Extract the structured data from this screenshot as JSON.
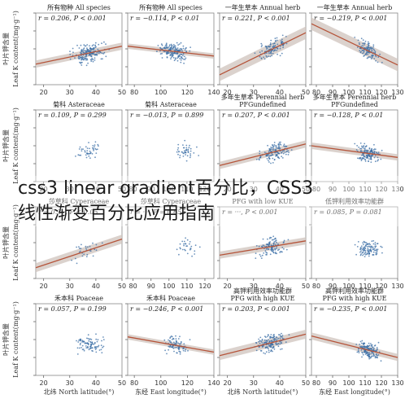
{
  "figure": {
    "y_axis_label": "Leaf K content(mg·g⁻¹)",
    "y_axis_label_cn": "叶片钾含量",
    "x_axis_labels": [
      "北纬 North latitude(°)",
      "东经 East longitude(°)",
      "北纬 North latitude(°)",
      "东经 East longitude(°)"
    ]
  },
  "overlay": {
    "line1": "css3 linear gradient百分比，CSS3",
    "line2": "线性渐变百分比应用指南"
  },
  "colors": {
    "points": "#3a6ea5",
    "line": "#b5543a",
    "band": "#cfc3bc"
  },
  "chart_data": [
    {
      "type": "scatter",
      "title": "所有物种 All species",
      "stat": "r = 0.206, P < 0.001",
      "xticks": [
        20,
        30,
        40,
        50
      ],
      "xlim": [
        17,
        50
      ],
      "fit": [
        [
          17,
          11.5
        ],
        [
          50,
          21.5
        ]
      ],
      "band": 2.0,
      "center": 37,
      "spread": 9,
      "npts": 170
    },
    {
      "type": "scatter",
      "title": "所有物种 All species",
      "stat": "r = −0.114, P < 0.01",
      "xticks": [
        80,
        100,
        120,
        140
      ],
      "xlim": [
        75,
        140
      ],
      "fit": [
        [
          75,
          21.5
        ],
        [
          140,
          16.0
        ]
      ],
      "band": 1.5,
      "center": 110,
      "spread": 15,
      "npts": 170
    },
    {
      "type": "scatter",
      "title": "一年生草本 Annual herb",
      "stat": "r = 0.221, P < 0.001",
      "xticks": [
        20,
        30,
        40,
        50
      ],
      "xlim": [
        17,
        50
      ],
      "fit": [
        [
          17,
          5.5
        ],
        [
          50,
          29.0
        ]
      ],
      "band": 3.5,
      "center": 37,
      "spread": 8,
      "npts": 110
    },
    {
      "type": "scatter",
      "title": "一年生草本 Annual herb",
      "stat": "r = −0.219, P < 0.001",
      "xticks": [
        80,
        90,
        100,
        110,
        120,
        130
      ],
      "xlim": [
        77,
        130
      ],
      "fit": [
        [
          77,
          34.0
        ],
        [
          130,
          11.0
        ]
      ],
      "band": 3.5,
      "center": 112,
      "spread": 10,
      "npts": 110
    },
    {
      "type": "scatter",
      "title": "菊科 Asteraceae",
      "stat": "r = 0.109, P = 0.299",
      "xticks": [
        20,
        30,
        40,
        50
      ],
      "xlim": [
        17,
        50
      ],
      "fit": [],
      "band": 0,
      "center": 37,
      "spread": 6,
      "npts": 45
    },
    {
      "type": "scatter",
      "title": "菊科 Asteraceae",
      "stat": "r = −0.013, P = 0.899",
      "xticks": [
        80,
        90,
        100,
        110,
        120
      ],
      "xlim": [
        77,
        125
      ],
      "fit": [],
      "band": 0,
      "center": 110,
      "spread": 8,
      "npts": 45
    },
    {
      "type": "scatter",
      "title": "多年生草本 Perennial herb",
      "stat": "r = 0.207, P < 0.001",
      "xticks": [
        20,
        30,
        40,
        50
      ],
      "xlim": [
        17,
        50
      ],
      "fit": [
        [
          17,
          9.0
        ],
        [
          50,
          21.0
        ]
      ],
      "band": 2.0,
      "center": 38,
      "spread": 8,
      "npts": 140
    },
    {
      "type": "scatter",
      "title": "多年生草本 Perennial herb",
      "stat": "r = −0.128, P < 0.01",
      "xticks": [
        80,
        90,
        100,
        110,
        120,
        130
      ],
      "xlim": [
        77,
        130
      ],
      "fit": [
        [
          77,
          20.0
        ],
        [
          130,
          13.5
        ]
      ],
      "band": 1.8,
      "center": 112,
      "spread": 10,
      "npts": 140
    },
    {
      "type": "scatter",
      "title": "莎草科 Cyperaceae",
      "stat": "r = 0.3··, P < 0.05",
      "xticks": [
        20,
        30,
        40,
        50
      ],
      "xlim": [
        17,
        50
      ],
      "fit": [
        [
          17,
          6.0
        ],
        [
          50,
          22.0
        ]
      ],
      "band": 2.5,
      "center": 36,
      "spread": 8,
      "npts": 30
    },
    {
      "type": "scatter",
      "title": "莎草科 Cyperaceae",
      "stat": "r = ···, P = 0.655",
      "xticks": [
        80,
        90,
        100,
        110,
        120
      ],
      "xlim": [
        77,
        125
      ],
      "fit": [],
      "band": 0,
      "center": 110,
      "spread": 9,
      "npts": 30
    },
    {
      "type": "scatter",
      "title": "PFG with low KUE",
      "stat": "r = ···, P < 0.001",
      "xticks": [
        20,
        30,
        40,
        50
      ],
      "xlim": [
        17,
        50
      ],
      "fit": [
        [
          17,
          13.0
        ],
        [
          50,
          21.0
        ]
      ],
      "band": 2.0,
      "center": 37,
      "spread": 8,
      "npts": 110
    },
    {
      "type": "scatter",
      "title": "低钾利用效率功能群",
      "stat": "r = 0.085, P = 0.081",
      "xticks": [
        80,
        90,
        100,
        110,
        120,
        130
      ],
      "xlim": [
        77,
        130
      ],
      "fit": [],
      "band": 0,
      "center": 112,
      "spread": 10,
      "npts": 110
    },
    {
      "type": "scatter",
      "title": "禾本科 Poaceae",
      "stat": "r = 0.057, P = 0.199",
      "xticks": [
        20,
        30,
        40,
        50
      ],
      "xlim": [
        17,
        50
      ],
      "fit": [],
      "band": 0,
      "center": 37,
      "spread": 8,
      "npts": 90
    },
    {
      "type": "scatter",
      "title": "禾本科 Poaceae",
      "stat": "r = −0.246, P < 0.001",
      "xticks": [
        80,
        100,
        120,
        140
      ],
      "xlim": [
        75,
        140
      ],
      "fit": [
        [
          75,
          21.5
        ],
        [
          140,
          13.0
        ]
      ],
      "band": 1.5,
      "center": 112,
      "spread": 12,
      "npts": 90
    },
    {
      "type": "scatter",
      "title": "高钾利用效率功能群 PFG with high KUE",
      "stat": "r = 0.203, P < 0.001",
      "xticks": [
        20,
        30,
        40,
        50
      ],
      "xlim": [
        17,
        50
      ],
      "fit": [
        [
          17,
          11.0
        ],
        [
          50,
          23.0
        ]
      ],
      "band": 2.5,
      "center": 37,
      "spread": 8,
      "npts": 150
    },
    {
      "type": "scatter",
      "title": "高钾利用效率功能群 PFG with high KUE",
      "stat": "r = −0.235, P < 0.001",
      "xticks": [
        80,
        90,
        100,
        110,
        120,
        130
      ],
      "xlim": [
        77,
        130
      ],
      "fit": [
        [
          77,
          22.0
        ],
        [
          130,
          10.0
        ]
      ],
      "band": 2.0,
      "center": 112,
      "spread": 10,
      "npts": 150
    }
  ]
}
